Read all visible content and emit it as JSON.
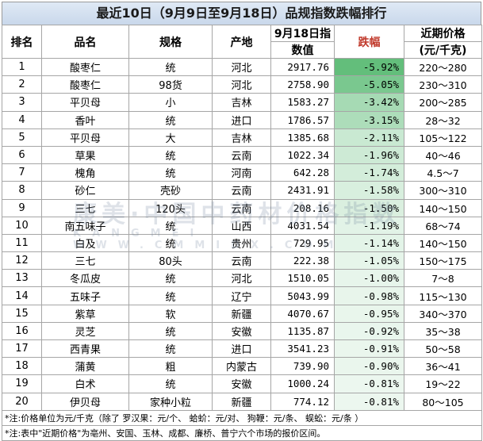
{
  "title": "最近10日（9月9日至9月18日）品规指数跌幅排行",
  "headers": {
    "rank": "排名",
    "name": "品名",
    "spec": "规格",
    "origin": "产地",
    "index_line1": "9月18日指",
    "index_line2": "数值",
    "drop": "跌幅",
    "price_line1": "近期价格",
    "price_line2": "(元/千克)"
  },
  "rows": [
    {
      "rank": "1",
      "name": "酸枣仁",
      "spec": "统",
      "origin": "河北",
      "index": "2917.76",
      "drop": "-5.92%",
      "drop_value": -5.92,
      "price": "220～280"
    },
    {
      "rank": "2",
      "name": "酸枣仁",
      "spec": "98货",
      "origin": "河北",
      "index": "2758.90",
      "drop": "-5.05%",
      "drop_value": -5.05,
      "price": "230～310"
    },
    {
      "rank": "3",
      "name": "平贝母",
      "spec": "小",
      "origin": "吉林",
      "index": "1583.27",
      "drop": "-3.42%",
      "drop_value": -3.42,
      "price": "200～285"
    },
    {
      "rank": "4",
      "name": "香叶",
      "spec": "统",
      "origin": "进口",
      "index": "1786.57",
      "drop": "-3.15%",
      "drop_value": -3.15,
      "price": "28～32"
    },
    {
      "rank": "5",
      "name": "平贝母",
      "spec": "大",
      "origin": "吉林",
      "index": "1385.68",
      "drop": "-2.11%",
      "drop_value": -2.11,
      "price": "105～122"
    },
    {
      "rank": "6",
      "name": "草果",
      "spec": "统",
      "origin": "云南",
      "index": "1022.34",
      "drop": "-1.96%",
      "drop_value": -1.96,
      "price": "40～46"
    },
    {
      "rank": "7",
      "name": "槐角",
      "spec": "统",
      "origin": "河南",
      "index": "642.28",
      "drop": "-1.74%",
      "drop_value": -1.74,
      "price": "4.5～7"
    },
    {
      "rank": "8",
      "name": "砂仁",
      "spec": "壳砂",
      "origin": "云南",
      "index": "2431.91",
      "drop": "-1.58%",
      "drop_value": -1.58,
      "price": "300～310"
    },
    {
      "rank": "9",
      "name": "三七",
      "spec": "120头",
      "origin": "云南",
      "index": "208.16",
      "drop": "-1.50%",
      "drop_value": -1.5,
      "price": "140～150"
    },
    {
      "rank": "10",
      "name": "南五味子",
      "spec": "统",
      "origin": "山西",
      "index": "4031.54",
      "drop": "-1.19%",
      "drop_value": -1.19,
      "price": "68～74"
    },
    {
      "rank": "11",
      "name": "白及",
      "spec": "统",
      "origin": "贵州",
      "index": "729.95",
      "drop": "-1.14%",
      "drop_value": -1.14,
      "price": "140～150"
    },
    {
      "rank": "12",
      "name": "三七",
      "spec": "80头",
      "origin": "云南",
      "index": "222.38",
      "drop": "-1.05%",
      "drop_value": -1.05,
      "price": "150～175"
    },
    {
      "rank": "13",
      "name": "冬瓜皮",
      "spec": "统",
      "origin": "河北",
      "index": "1510.05",
      "drop": "-1.00%",
      "drop_value": -1.0,
      "price": "7～8"
    },
    {
      "rank": "14",
      "name": "五味子",
      "spec": "统",
      "origin": "辽宁",
      "index": "5043.99",
      "drop": "-0.98%",
      "drop_value": -0.98,
      "price": "115～130"
    },
    {
      "rank": "15",
      "name": "紫草",
      "spec": "软",
      "origin": "新疆",
      "index": "4070.67",
      "drop": "-0.95%",
      "drop_value": -0.95,
      "price": "340～370"
    },
    {
      "rank": "16",
      "name": "灵芝",
      "spec": "统",
      "origin": "安徽",
      "index": "1135.87",
      "drop": "-0.92%",
      "drop_value": -0.92,
      "price": "35～38"
    },
    {
      "rank": "17",
      "name": "西青果",
      "spec": "统",
      "origin": "进口",
      "index": "3541.23",
      "drop": "-0.91%",
      "drop_value": -0.91,
      "price": "50～58"
    },
    {
      "rank": "18",
      "name": "蒲黄",
      "spec": "粗",
      "origin": "内蒙古",
      "index": "739.90",
      "drop": "-0.90%",
      "drop_value": -0.9,
      "price": "36～41"
    },
    {
      "rank": "19",
      "name": "白术",
      "spec": "统",
      "origin": "安徽",
      "index": "1000.24",
      "drop": "-0.81%",
      "drop_value": -0.81,
      "price": "19～22"
    },
    {
      "rank": "20",
      "name": "伊贝母",
      "spec": "家种小粒",
      "origin": "新疆",
      "index": "774.12",
      "drop": "-0.81%",
      "drop_value": -0.81,
      "price": "80～105"
    }
  ],
  "notes": [
    "*注:价格单位为元/千克（除了  罗汉果：元/个、  蛤蚧：元/对、  狗鞭：元/条、  蜈蚣：元/条 ）",
    "*注:表中\"近期价格\"为亳州、安国、玉林、成都、廉桥、普宁六个市场的报价区间。"
  ],
  "watermark": {
    "line1": "康美·中国中药材价格指数",
    "line2": "KANGMEI  WWW.CMMIDX.COM"
  },
  "colors": {
    "drop_header": "#c0392b",
    "heat_strong": "#63be7b",
    "heat_weak": "#ffffff",
    "border": "#a6a6a6"
  }
}
